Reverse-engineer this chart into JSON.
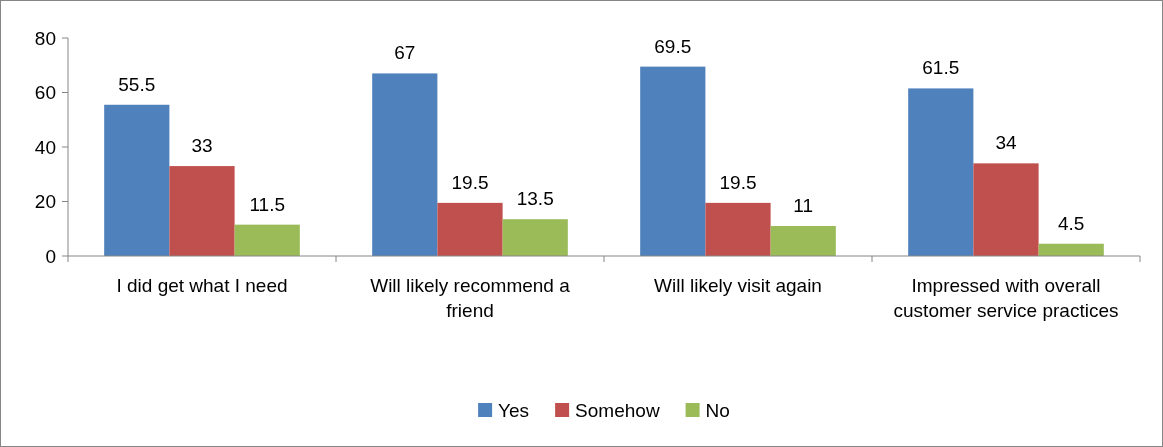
{
  "chart_data": {
    "type": "bar",
    "categories": [
      "I did get what I need",
      "Will likely recommend a friend",
      "Will likely visit again",
      "Impressed with overall customer service practices"
    ],
    "series": [
      {
        "name": "Yes",
        "color": "#4f81bd",
        "values": [
          55.5,
          67,
          69.5,
          61.5
        ]
      },
      {
        "name": "Somehow",
        "color": "#c0504d",
        "values": [
          33,
          19.5,
          19.5,
          34
        ]
      },
      {
        "name": "No",
        "color": "#9bbb59",
        "values": [
          11.5,
          13.5,
          11,
          4.5
        ]
      }
    ],
    "ylim": [
      0,
      80
    ],
    "yticks": [
      0,
      20,
      40,
      60,
      80
    ],
    "data_labels": true,
    "legend": "bottom",
    "grid": false
  }
}
